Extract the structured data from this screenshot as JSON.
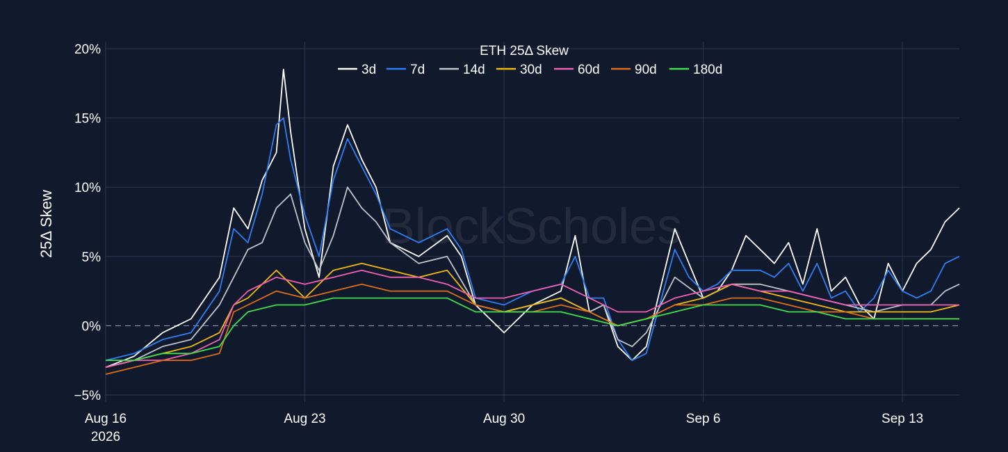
{
  "chart_data": {
    "type": "line",
    "title": "ETH 25Δ Skew",
    "ylabel": "25Δ Skew",
    "xlabel": "",
    "y_unit": "%",
    "ylim": [
      -5.5,
      20.5
    ],
    "yticks": [
      20,
      15,
      10,
      5,
      0,
      -5
    ],
    "ytick_labels": [
      "20%",
      "15%",
      "10%",
      "5%",
      "0%",
      "−5%"
    ],
    "x_start": "2026-08-16",
    "x_end": "2026-09-15",
    "xticks": [
      {
        "date": "2026-08-16",
        "label": "Aug 16",
        "sublabel": "2026"
      },
      {
        "date": "2026-08-23",
        "label": "Aug 23",
        "sublabel": ""
      },
      {
        "date": "2026-08-30",
        "label": "Aug 30",
        "sublabel": ""
      },
      {
        "date": "2026-09-06",
        "label": "Sep 6",
        "sublabel": ""
      },
      {
        "date": "2026-09-13",
        "label": "Sep 13",
        "sublabel": ""
      }
    ],
    "grid": true,
    "zero_line": "dashed",
    "legend_position": "top-center",
    "background": "#111a2d",
    "grid_color": "#2a3553",
    "watermark": "BlockScholes",
    "series": [
      {
        "name": "3d",
        "color": "#ffffff",
        "x": [
          "2026-08-16",
          "2026-08-17",
          "2026-08-18",
          "2026-08-19",
          "2026-08-20",
          "2026-08-20 12:00",
          "2026-08-21",
          "2026-08-21 12:00",
          "2026-08-22",
          "2026-08-22 06:00",
          "2026-08-22 12:00",
          "2026-08-23",
          "2026-08-23 12:00",
          "2026-08-24",
          "2026-08-24 12:00",
          "2026-08-25",
          "2026-08-25 12:00",
          "2026-08-26",
          "2026-08-27",
          "2026-08-28",
          "2026-08-28 12:00",
          "2026-08-29",
          "2026-08-30",
          "2026-08-31",
          "2026-09-01",
          "2026-09-01 12:00",
          "2026-09-02",
          "2026-09-02 12:00",
          "2026-09-03",
          "2026-09-03 12:00",
          "2026-09-04",
          "2026-09-05",
          "2026-09-05 12:00",
          "2026-09-06",
          "2026-09-06 12:00",
          "2026-09-07",
          "2026-09-07 12:00",
          "2026-09-08",
          "2026-09-08 12:00",
          "2026-09-09",
          "2026-09-09 12:00",
          "2026-09-10",
          "2026-09-10 12:00",
          "2026-09-11",
          "2026-09-11 12:00",
          "2026-09-12",
          "2026-09-12 12:00",
          "2026-09-13",
          "2026-09-13 12:00",
          "2026-09-14",
          "2026-09-14 12:00",
          "2026-09-15"
        ],
        "y": [
          -3.0,
          -2.2,
          -0.5,
          0.5,
          3.5,
          8.5,
          7.0,
          10.5,
          12.5,
          18.5,
          14.0,
          7.0,
          3.5,
          11.5,
          14.5,
          12.0,
          10.0,
          6.0,
          5.0,
          6.5,
          5.0,
          1.5,
          -0.5,
          1.5,
          2.5,
          6.5,
          1.0,
          1.5,
          -1.5,
          -2.5,
          -1.5,
          7.0,
          4.5,
          2.0,
          2.5,
          4.0,
          6.5,
          5.5,
          4.5,
          6.0,
          3.0,
          7.0,
          2.5,
          3.5,
          1.5,
          0.5,
          4.5,
          2.5,
          4.5,
          5.5,
          7.5,
          8.5
        ]
      },
      {
        "name": "7d",
        "color": "#2e7ff5",
        "x": [
          "2026-08-16",
          "2026-08-17",
          "2026-08-18",
          "2026-08-19",
          "2026-08-20",
          "2026-08-20 12:00",
          "2026-08-21",
          "2026-08-21 12:00",
          "2026-08-22",
          "2026-08-22 06:00",
          "2026-08-22 12:00",
          "2026-08-23",
          "2026-08-23 12:00",
          "2026-08-24",
          "2026-08-24 12:00",
          "2026-08-25",
          "2026-08-25 12:00",
          "2026-08-26",
          "2026-08-27",
          "2026-08-28",
          "2026-08-28 12:00",
          "2026-08-29",
          "2026-08-30",
          "2026-08-31",
          "2026-09-01",
          "2026-09-01 12:00",
          "2026-09-02",
          "2026-09-02 12:00",
          "2026-09-03",
          "2026-09-03 12:00",
          "2026-09-04",
          "2026-09-05",
          "2026-09-05 12:00",
          "2026-09-06",
          "2026-09-06 12:00",
          "2026-09-07",
          "2026-09-07 12:00",
          "2026-09-08",
          "2026-09-08 12:00",
          "2026-09-09",
          "2026-09-09 12:00",
          "2026-09-10",
          "2026-09-10 12:00",
          "2026-09-11",
          "2026-09-11 12:00",
          "2026-09-12",
          "2026-09-12 12:00",
          "2026-09-13",
          "2026-09-13 12:00",
          "2026-09-14",
          "2026-09-14 12:00",
          "2026-09-15"
        ],
        "y": [
          -2.5,
          -2.0,
          -1.0,
          -0.5,
          2.5,
          7.0,
          6.0,
          9.5,
          14.5,
          15.0,
          12.0,
          8.0,
          5.0,
          10.5,
          13.5,
          11.5,
          9.5,
          7.0,
          6.0,
          7.0,
          5.5,
          2.0,
          1.5,
          2.5,
          3.0,
          5.0,
          2.0,
          2.0,
          -1.0,
          -2.5,
          -2.0,
          5.5,
          3.5,
          2.5,
          3.0,
          4.0,
          4.0,
          4.0,
          3.5,
          4.5,
          2.5,
          4.5,
          2.0,
          2.5,
          1.0,
          2.0,
          4.0,
          2.5,
          2.0,
          2.5,
          4.5,
          5.0
        ]
      },
      {
        "name": "14d",
        "color": "#c0c4cc",
        "x": [
          "2026-08-16",
          "2026-08-17",
          "2026-08-18",
          "2026-08-19",
          "2026-08-20",
          "2026-08-20 12:00",
          "2026-08-21",
          "2026-08-21 12:00",
          "2026-08-22",
          "2026-08-22 12:00",
          "2026-08-23",
          "2026-08-23 12:00",
          "2026-08-24",
          "2026-08-24 12:00",
          "2026-08-25",
          "2026-08-25 12:00",
          "2026-08-26",
          "2026-08-27",
          "2026-08-28",
          "2026-08-29",
          "2026-08-30",
          "2026-08-31",
          "2026-09-01",
          "2026-09-02",
          "2026-09-02 12:00",
          "2026-09-03",
          "2026-09-03 12:00",
          "2026-09-04",
          "2026-09-05",
          "2026-09-06",
          "2026-09-07",
          "2026-09-08",
          "2026-09-09",
          "2026-09-10",
          "2026-09-11",
          "2026-09-12",
          "2026-09-13",
          "2026-09-14",
          "2026-09-14 12:00",
          "2026-09-15"
        ],
        "y": [
          -3.0,
          -2.5,
          -1.5,
          -1.0,
          1.5,
          3.5,
          5.5,
          6.0,
          8.5,
          9.5,
          6.0,
          4.0,
          6.5,
          10.0,
          8.5,
          7.5,
          6.0,
          4.5,
          5.0,
          1.5,
          1.0,
          1.5,
          2.0,
          1.0,
          1.5,
          -1.0,
          -1.5,
          -0.5,
          3.5,
          2.0,
          3.0,
          3.0,
          2.5,
          2.0,
          1.5,
          1.0,
          1.5,
          1.5,
          2.5,
          3.0
        ]
      },
      {
        "name": "30d",
        "color": "#f0b90b",
        "x": [
          "2026-08-16",
          "2026-08-17",
          "2026-08-18",
          "2026-08-19",
          "2026-08-20",
          "2026-08-20 12:00",
          "2026-08-21",
          "2026-08-22",
          "2026-08-23",
          "2026-08-24",
          "2026-08-25",
          "2026-08-26",
          "2026-08-27",
          "2026-08-28",
          "2026-08-29",
          "2026-08-30",
          "2026-08-31",
          "2026-09-01",
          "2026-09-02",
          "2026-09-03",
          "2026-09-04",
          "2026-09-05",
          "2026-09-06",
          "2026-09-07",
          "2026-09-08",
          "2026-09-09",
          "2026-09-10",
          "2026-09-11",
          "2026-09-12",
          "2026-09-13",
          "2026-09-14",
          "2026-09-15"
        ],
        "y": [
          -3.0,
          -2.5,
          -2.0,
          -1.5,
          -0.5,
          1.5,
          2.0,
          4.0,
          2.0,
          4.0,
          4.5,
          4.0,
          3.5,
          4.0,
          1.5,
          1.0,
          1.5,
          2.0,
          1.0,
          0.0,
          0.5,
          1.5,
          2.0,
          3.0,
          2.5,
          2.0,
          1.5,
          1.0,
          1.0,
          1.0,
          1.0,
          1.5
        ]
      },
      {
        "name": "60d",
        "color": "#f05fb4",
        "x": [
          "2026-08-16",
          "2026-08-17",
          "2026-08-18",
          "2026-08-19",
          "2026-08-20",
          "2026-08-20 12:00",
          "2026-08-21",
          "2026-08-22",
          "2026-08-23",
          "2026-08-24",
          "2026-08-25",
          "2026-08-26",
          "2026-08-27",
          "2026-08-28",
          "2026-08-29",
          "2026-08-30",
          "2026-08-31",
          "2026-09-01",
          "2026-09-02",
          "2026-09-03",
          "2026-09-04",
          "2026-09-05",
          "2026-09-06",
          "2026-09-07",
          "2026-09-08",
          "2026-09-09",
          "2026-09-10",
          "2026-09-11",
          "2026-09-12",
          "2026-09-13",
          "2026-09-14",
          "2026-09-15"
        ],
        "y": [
          -3.0,
          -2.5,
          -2.5,
          -2.0,
          -1.0,
          1.5,
          2.5,
          3.5,
          3.0,
          3.5,
          4.0,
          3.5,
          3.5,
          3.0,
          2.0,
          2.0,
          2.5,
          3.0,
          2.0,
          1.0,
          1.0,
          2.0,
          2.5,
          3.0,
          2.5,
          2.5,
          2.0,
          1.5,
          1.5,
          1.5,
          1.5,
          1.5
        ]
      },
      {
        "name": "90d",
        "color": "#e06d18",
        "x": [
          "2026-08-16",
          "2026-08-17",
          "2026-08-18",
          "2026-08-19",
          "2026-08-20",
          "2026-08-20 12:00",
          "2026-08-21",
          "2026-08-22",
          "2026-08-23",
          "2026-08-24",
          "2026-08-25",
          "2026-08-26",
          "2026-08-27",
          "2026-08-28",
          "2026-08-29",
          "2026-08-30",
          "2026-08-31",
          "2026-09-01",
          "2026-09-02",
          "2026-09-03",
          "2026-09-04",
          "2026-09-05",
          "2026-09-06",
          "2026-09-07",
          "2026-09-08",
          "2026-09-09",
          "2026-09-10",
          "2026-09-11",
          "2026-09-12",
          "2026-09-13",
          "2026-09-14",
          "2026-09-15"
        ],
        "y": [
          -3.5,
          -3.0,
          -2.5,
          -2.5,
          -2.0,
          1.0,
          1.5,
          2.5,
          2.0,
          2.5,
          3.0,
          2.5,
          2.5,
          2.5,
          1.5,
          1.0,
          1.0,
          1.5,
          1.0,
          0.0,
          0.5,
          1.5,
          1.5,
          2.0,
          2.0,
          1.5,
          1.0,
          1.0,
          0.5,
          0.5,
          0.5,
          0.5
        ]
      },
      {
        "name": "180d",
        "color": "#3ee04c",
        "x": [
          "2026-08-16",
          "2026-08-17",
          "2026-08-18",
          "2026-08-19",
          "2026-08-20",
          "2026-08-20 12:00",
          "2026-08-21",
          "2026-08-22",
          "2026-08-23",
          "2026-08-24",
          "2026-08-25",
          "2026-08-26",
          "2026-08-27",
          "2026-08-28",
          "2026-08-29",
          "2026-08-30",
          "2026-08-31",
          "2026-09-01",
          "2026-09-02",
          "2026-09-03",
          "2026-09-04",
          "2026-09-05",
          "2026-09-06",
          "2026-09-07",
          "2026-09-08",
          "2026-09-09",
          "2026-09-10",
          "2026-09-11",
          "2026-09-12",
          "2026-09-13",
          "2026-09-14",
          "2026-09-15"
        ],
        "y": [
          -2.5,
          -2.5,
          -2.0,
          -2.0,
          -1.5,
          0.0,
          1.0,
          1.5,
          1.5,
          2.0,
          2.0,
          2.0,
          2.0,
          2.0,
          1.0,
          1.0,
          1.0,
          1.0,
          0.5,
          0.0,
          0.5,
          1.0,
          1.5,
          1.5,
          1.5,
          1.0,
          1.0,
          0.5,
          0.5,
          0.5,
          0.5,
          0.5
        ]
      }
    ]
  }
}
